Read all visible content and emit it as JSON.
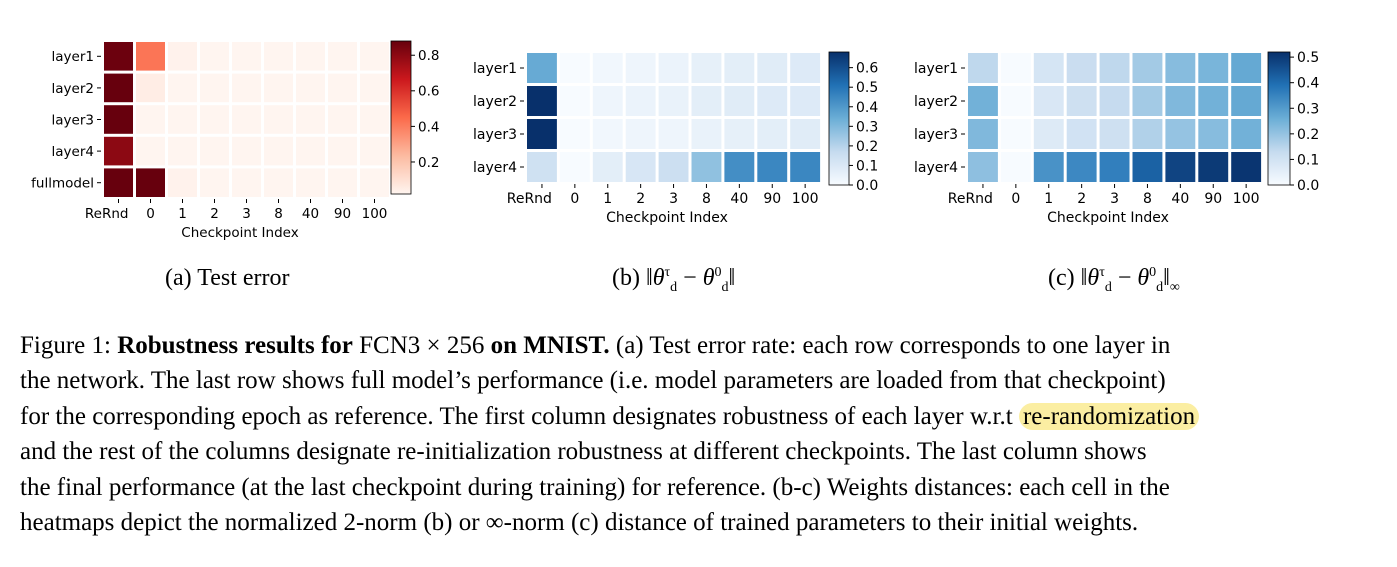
{
  "figure": {
    "panels": [
      {
        "id": "a",
        "caption_prefix": "(a)",
        "caption": "Test error",
        "ylabel_rows": [
          "layer1",
          "layer2",
          "layer3",
          "layer4",
          "fullmodel"
        ],
        "xlabel": "Checkpoint Index",
        "xticks": [
          "ReRnd",
          "0",
          "1",
          "2",
          "3",
          "8",
          "40",
          "90",
          "100"
        ],
        "colormap": "reds",
        "colorbar_ticks": [
          "0.2",
          "0.4",
          "0.6",
          "0.8"
        ]
      },
      {
        "id": "b",
        "caption_prefix": "(b)",
        "caption_math": "‖θdτ − θd0‖",
        "ylabel_rows": [
          "layer1",
          "layer2",
          "layer3",
          "layer4"
        ],
        "xlabel": "Checkpoint Index",
        "xticks": [
          "ReRnd",
          "0",
          "1",
          "2",
          "3",
          "8",
          "40",
          "90",
          "100"
        ],
        "colormap": "blues",
        "colorbar_ticks": [
          "0.0",
          "0.1",
          "0.2",
          "0.3",
          "0.4",
          "0.5",
          "0.6"
        ]
      },
      {
        "id": "c",
        "caption_prefix": "(c)",
        "caption_math": "‖θdτ − θd0‖∞",
        "ylabel_rows": [
          "layer1",
          "layer2",
          "layer3",
          "layer4"
        ],
        "xlabel": "Checkpoint Index",
        "xticks": [
          "ReRnd",
          "0",
          "1",
          "2",
          "3",
          "8",
          "40",
          "90",
          "100"
        ],
        "colormap": "blues",
        "colorbar_ticks": [
          "0.0",
          "0.1",
          "0.2",
          "0.3",
          "0.4",
          "0.5"
        ]
      }
    ]
  },
  "chart_data": [
    {
      "type": "heatmap",
      "title": "(a) Test error",
      "xlabel": "Checkpoint Index",
      "ylabel": "",
      "x": [
        "ReRnd",
        "0",
        "1",
        "2",
        "3",
        "8",
        "40",
        "90",
        "100"
      ],
      "y": [
        "layer1",
        "layer2",
        "layer3",
        "layer4",
        "fullmodel"
      ],
      "colorbar_range": [
        0.02,
        0.88
      ],
      "values": [
        [
          0.87,
          0.42,
          0.03,
          0.02,
          0.02,
          0.02,
          0.02,
          0.02,
          0.02
        ],
        [
          0.88,
          0.05,
          0.02,
          0.02,
          0.02,
          0.02,
          0.02,
          0.02,
          0.02
        ],
        [
          0.88,
          0.02,
          0.02,
          0.02,
          0.02,
          0.02,
          0.02,
          0.02,
          0.02
        ],
        [
          0.8,
          0.02,
          0.02,
          0.02,
          0.02,
          0.02,
          0.02,
          0.02,
          0.02
        ],
        [
          0.88,
          0.88,
          0.03,
          0.02,
          0.02,
          0.02,
          0.02,
          0.02,
          0.02
        ]
      ]
    },
    {
      "type": "heatmap",
      "title": "(b) ‖θdτ − θd0‖",
      "xlabel": "Checkpoint Index",
      "ylabel": "",
      "x": [
        "ReRnd",
        "0",
        "1",
        "2",
        "3",
        "8",
        "40",
        "90",
        "100"
      ],
      "y": [
        "layer1",
        "layer2",
        "layer3",
        "layer4"
      ],
      "colorbar_range": [
        0.0,
        0.68
      ],
      "values": [
        [
          0.35,
          0.0,
          0.02,
          0.03,
          0.04,
          0.06,
          0.07,
          0.08,
          0.09
        ],
        [
          0.68,
          0.0,
          0.03,
          0.04,
          0.05,
          0.07,
          0.08,
          0.09,
          0.09
        ],
        [
          0.68,
          0.0,
          0.02,
          0.03,
          0.03,
          0.05,
          0.06,
          0.07,
          0.08
        ],
        [
          0.14,
          0.0,
          0.07,
          0.11,
          0.15,
          0.27,
          0.43,
          0.45,
          0.45
        ]
      ]
    },
    {
      "type": "heatmap",
      "title": "(c) ‖θdτ − θd0‖∞",
      "xlabel": "Checkpoint Index",
      "ylabel": "",
      "x": [
        "ReRnd",
        "0",
        "1",
        "2",
        "3",
        "8",
        "40",
        "90",
        "100"
      ],
      "y": [
        "layer1",
        "layer2",
        "layer3",
        "layer4"
      ],
      "colorbar_range": [
        0.0,
        0.52
      ],
      "values": [
        [
          0.14,
          0.0,
          0.09,
          0.12,
          0.14,
          0.18,
          0.22,
          0.24,
          0.27
        ],
        [
          0.25,
          0.0,
          0.08,
          0.11,
          0.13,
          0.18,
          0.23,
          0.25,
          0.27
        ],
        [
          0.23,
          0.0,
          0.07,
          0.1,
          0.11,
          0.16,
          0.2,
          0.22,
          0.25
        ],
        [
          0.21,
          0.0,
          0.32,
          0.34,
          0.36,
          0.42,
          0.48,
          0.5,
          0.51
        ]
      ]
    }
  ],
  "caption": {
    "label": "Figure 1:",
    "bold_1": "Robustness results for",
    "model": "FCN3 × 256",
    "bold_2": "on MNIST.",
    "line1_rest": "(a) Test error rate: each row corresponds to one layer in",
    "line2": "the network. The last row shows full model’s performance (i.e. model parameters are loaded from that checkpoint)",
    "line3_pre": "for the corresponding epoch as reference. The first column designates robustness of each layer w.r.t",
    "line3_highlight": "re-randomization",
    "line4": "and the rest of the columns designate re-initialization robustness at different checkpoints. The last column shows",
    "line5": "the final performance (at the last checkpoint during training) for reference. (b-c) Weights distances: each cell in the",
    "line6": "heatmaps depict the normalized 2-norm (b) or ∞-norm (c) distance of trained parameters to their initial weights."
  },
  "colors": {
    "reds": [
      "#fff5f0",
      "#fcbba1",
      "#fb6a4a",
      "#cb181d",
      "#67000d"
    ],
    "blues": [
      "#f7fbff",
      "#c6dbef",
      "#6baed6",
      "#2171b5",
      "#08306b"
    ],
    "highlight": "#fbeea2"
  }
}
